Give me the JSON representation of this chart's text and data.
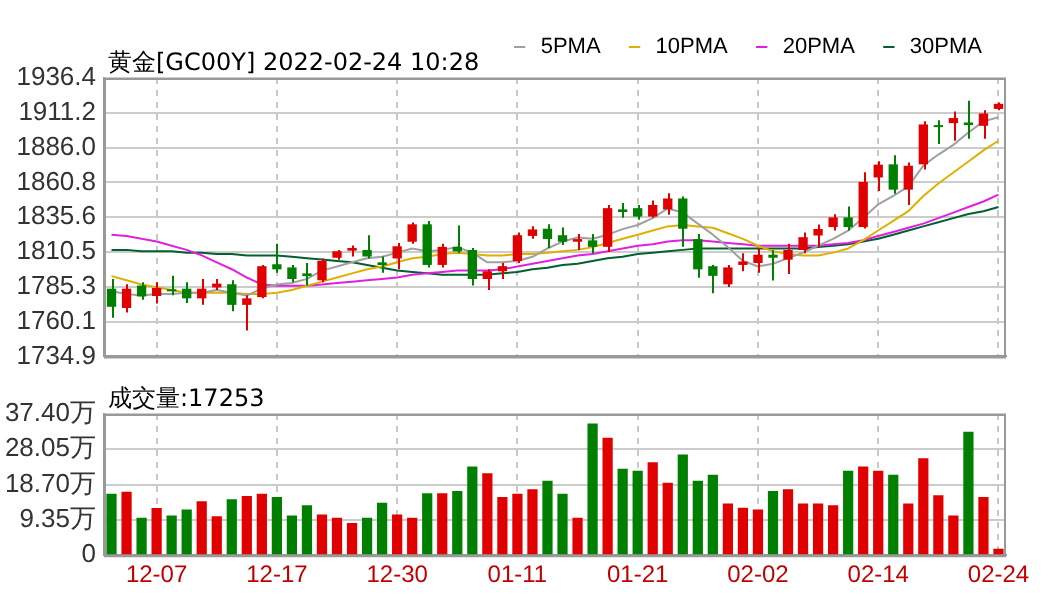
{
  "chart_data": [
    {
      "type": "candlestick",
      "title": "黄金[GC00Y] 2022-02-24 10:28",
      "categories": [
        null,
        null,
        null,
        null,
        null,
        null,
        null,
        null,
        null,
        null,
        null,
        null,
        null,
        null,
        null,
        null,
        null,
        null,
        null,
        null,
        null,
        null,
        null,
        null,
        null,
        null,
        null,
        null,
        null,
        null,
        null,
        null,
        null,
        null,
        null,
        null,
        null,
        null,
        null,
        null,
        null,
        null,
        null,
        null,
        null,
        null,
        null,
        null,
        null,
        null,
        null,
        null,
        null,
        null,
        null,
        null,
        null,
        null,
        null,
        null
      ],
      "ohlc": [
        [
          1783.9,
          1790.9,
          1762.9,
          1770.8
        ],
        [
          1769.9,
          1787.1,
          1766.6,
          1783.9
        ],
        [
          1786.2,
          1788.5,
          1775.9,
          1778.3
        ],
        [
          1778.6,
          1788.5,
          1773.2,
          1784.4
        ],
        [
          1783.5,
          1793.2,
          1779.2,
          1782.0
        ],
        [
          1783.9,
          1788.5,
          1773.6,
          1776.9
        ],
        [
          1776.9,
          1790.9,
          1772.2,
          1783.9
        ],
        [
          1784.8,
          1790.9,
          1783.0,
          1787.6
        ],
        [
          1787.1,
          1790.0,
          1767.6,
          1772.2
        ],
        [
          1772.2,
          1779.2,
          1753.6,
          1776.9
        ],
        [
          1777.8,
          1801.1,
          1776.9,
          1800.2
        ],
        [
          1801.6,
          1816.5,
          1795.5,
          1797.9
        ],
        [
          1799.3,
          1801.1,
          1788.5,
          1790.9
        ],
        [
          1795.0,
          1802.5,
          1786.2,
          1793.0
        ],
        [
          1790.0,
          1805.8,
          1788.5,
          1804.0
        ],
        [
          1806.3,
          1811.9,
          1804.9,
          1811.0
        ],
        [
          1811.4,
          1815.1,
          1807.2,
          1813.4
        ],
        [
          1811.9,
          1822.5,
          1805.8,
          1807.2
        ],
        [
          1803.0,
          1807.2,
          1795.5,
          1801.0
        ],
        [
          1805.8,
          1816.9,
          1797.9,
          1814.6
        ],
        [
          1817.9,
          1831.9,
          1816.5,
          1830.5
        ],
        [
          1830.5,
          1832.9,
          1799.3,
          1801.1
        ],
        [
          1801.1,
          1816.5,
          1799.3,
          1814.2
        ],
        [
          1814.2,
          1829.6,
          1809.5,
          1810.9
        ],
        [
          1811.9,
          1813.3,
          1786.2,
          1790.9
        ],
        [
          1790.9,
          1797.9,
          1783.0,
          1796.5
        ],
        [
          1796.5,
          1802.5,
          1790.9,
          1800.2
        ],
        [
          1803.9,
          1824.5,
          1802.5,
          1822.6
        ],
        [
          1822.1,
          1829.1,
          1820.0,
          1826.8
        ],
        [
          1827.3,
          1830.5,
          1813.3,
          1819.8
        ],
        [
          1822.6,
          1828.2,
          1815.6,
          1817.9
        ],
        [
          1817.9,
          1823.5,
          1812.0,
          1819.8
        ],
        [
          1818.9,
          1823.5,
          1809.5,
          1814.2
        ],
        [
          1814.2,
          1844.5,
          1810.5,
          1842.2
        ],
        [
          1841.3,
          1845.9,
          1835.2,
          1839.4
        ],
        [
          1842.2,
          1844.5,
          1833.8,
          1836.1
        ],
        [
          1836.1,
          1847.8,
          1835.2,
          1844.5
        ],
        [
          1841.3,
          1852.9,
          1837.5,
          1849.2
        ],
        [
          1849.2,
          1850.6,
          1814.2,
          1827.3
        ],
        [
          1819.8,
          1823.5,
          1791.8,
          1797.9
        ],
        [
          1800.2,
          1801.1,
          1780.6,
          1793.2
        ],
        [
          1787.1,
          1801.1,
          1785.2,
          1799.3
        ],
        [
          1801.1,
          1809.5,
          1796.5,
          1803.6
        ],
        [
          1802.5,
          1813.1,
          1795.5,
          1808.5
        ],
        [
          1808.5,
          1811.7,
          1789.9,
          1806.3
        ],
        [
          1804.9,
          1816.4,
          1794.6,
          1811.9
        ],
        [
          1811.9,
          1824.5,
          1809.5,
          1821.2
        ],
        [
          1822.4,
          1830.4,
          1814.2,
          1827.1
        ],
        [
          1828.5,
          1837.8,
          1826.1,
          1835.5
        ],
        [
          1835.5,
          1843.4,
          1826.1,
          1828.5
        ],
        [
          1828.5,
          1868.2,
          1827.5,
          1861.2
        ],
        [
          1864.4,
          1876.1,
          1854.7,
          1873.7
        ],
        [
          1873.9,
          1880.4,
          1852.6,
          1855.6
        ],
        [
          1855.6,
          1875.3,
          1844.4,
          1872.9
        ],
        [
          1873.9,
          1905.1,
          1870.2,
          1902.8
        ],
        [
          1902.3,
          1905.9,
          1888.6,
          1901.4
        ],
        [
          1903.7,
          1912.1,
          1891.0,
          1907.4
        ],
        [
          1904.2,
          1920.0,
          1892.4,
          1902.3
        ],
        [
          1901.8,
          1913.0,
          1892.4,
          1910.7
        ],
        [
          1914.0,
          1918.6,
          1913.0,
          1917.7
        ]
      ],
      "colors": [
        "#007f00",
        "#e00000",
        "#007f00",
        "#e00000",
        "#007f00",
        "#007f00",
        "#e00000",
        "#e00000",
        "#007f00",
        "#e00000",
        "#e00000",
        "#007f00",
        "#007f00",
        "#007f00",
        "#e00000",
        "#e00000",
        "#e00000",
        "#007f00",
        "#007f00",
        "#e00000",
        "#e00000",
        "#007f00",
        "#e00000",
        "#007f00",
        "#007f00",
        "#e00000",
        "#e00000",
        "#e00000",
        "#e00000",
        "#007f00",
        "#007f00",
        "#e00000",
        "#007f00",
        "#e00000",
        "#007f00",
        "#007f00",
        "#e00000",
        "#e00000",
        "#007f00",
        "#007f00",
        "#007f00",
        "#e00000",
        "#e00000",
        "#e00000",
        "#007f00",
        "#e00000",
        "#e00000",
        "#e00000",
        "#e00000",
        "#007f00",
        "#e00000",
        "#e00000",
        "#007f00",
        "#e00000",
        "#e00000",
        "#007f00",
        "#e00000",
        "#007f00",
        "#e00000",
        "#e00000"
      ],
      "series": [
        {
          "name": "5PMA",
          "type": "line",
          "color": "#a0a0a0",
          "values": [
            1782,
            1780,
            1779,
            1780,
            1780,
            1781,
            1781,
            1783,
            1781,
            1779,
            1784,
            1787,
            1788,
            1791,
            1797,
            1800,
            1803,
            1806,
            1807,
            1810,
            1813,
            1811,
            1812,
            1814,
            1810,
            1803,
            1803,
            1804,
            1807,
            1813,
            1818,
            1821,
            1820,
            1823,
            1827,
            1830,
            1835,
            1842,
            1839,
            1831,
            1823,
            1814,
            1804,
            1800,
            1802,
            1806,
            1810,
            1815,
            1820,
            1826,
            1835,
            1845,
            1851,
            1858,
            1873,
            1881,
            1888,
            1897,
            1905,
            1908
          ]
        },
        {
          "name": "10PMA",
          "type": "line",
          "color": "#e0b000",
          "values": [
            1793,
            1790,
            1787,
            1785,
            1783,
            1781,
            1781,
            1781,
            1781,
            1780,
            1780,
            1781,
            1783,
            1786,
            1789,
            1792,
            1795,
            1798,
            1800,
            1803,
            1806,
            1807,
            1809,
            1810,
            1809,
            1808,
            1808,
            1809,
            1809,
            1810,
            1811,
            1812,
            1814,
            1817,
            1820,
            1823,
            1826,
            1829,
            1830,
            1829,
            1828,
            1824,
            1820,
            1815,
            1811,
            1809,
            1808,
            1808,
            1810,
            1813,
            1819,
            1826,
            1833,
            1840,
            1851,
            1860,
            1868,
            1876,
            1884,
            1891
          ]
        },
        {
          "name": "20PMA",
          "type": "line",
          "color": "#e020e0",
          "values": [
            1823,
            1822,
            1820,
            1818,
            1815,
            1812,
            1808,
            1803,
            1798,
            1792,
            1787,
            1786,
            1786,
            1786,
            1787,
            1788,
            1789,
            1790,
            1791,
            1792,
            1794,
            1795,
            1796,
            1797,
            1797,
            1797,
            1798,
            1800,
            1802,
            1804,
            1806,
            1808,
            1809,
            1811,
            1813,
            1815,
            1816,
            1818,
            1819,
            1819,
            1818,
            1817,
            1816,
            1815,
            1815,
            1815,
            1815,
            1815,
            1816,
            1817,
            1819,
            1822,
            1825,
            1828,
            1831,
            1835,
            1839,
            1843,
            1847,
            1852
          ]
        },
        {
          "name": "30PMA",
          "type": "line",
          "color": "#006030",
          "values": [
            1812,
            1812,
            1811,
            1811,
            1811,
            1810,
            1810,
            1809,
            1809,
            1808,
            1808,
            1808,
            1807,
            1806,
            1805,
            1804,
            1803,
            1801,
            1799,
            1797,
            1796,
            1795,
            1794,
            1794,
            1794,
            1794,
            1795,
            1796,
            1798,
            1799,
            1801,
            1802,
            1804,
            1806,
            1807,
            1809,
            1810,
            1811,
            1812,
            1813,
            1813,
            1813,
            1813,
            1813,
            1813,
            1813,
            1813,
            1814,
            1815,
            1816,
            1818,
            1820,
            1823,
            1826,
            1829,
            1832,
            1835,
            1838,
            1840,
            1843
          ]
        }
      ],
      "ylim": [
        1734.9,
        1936.4
      ],
      "yticks": [
        1734.9,
        1760.1,
        1785.3,
        1810.5,
        1835.6,
        1860.8,
        {
          "value": 1886,
          "label": "1886.0"
        },
        1911.2,
        1936.4
      ],
      "grid": true,
      "legend": "top right",
      "tick_labels": "y"
    },
    {
      "type": "bar",
      "title": "成交量:17253",
      "categories": [
        null,
        null,
        null,
        "12-07",
        null,
        null,
        null,
        null,
        null,
        null,
        null,
        "12-17",
        null,
        null,
        null,
        null,
        null,
        null,
        null,
        "12-30",
        null,
        null,
        null,
        null,
        null,
        null,
        null,
        "01-11",
        null,
        null,
        null,
        null,
        null,
        null,
        null,
        "01-21",
        null,
        null,
        null,
        null,
        null,
        null,
        null,
        "02-02",
        null,
        null,
        null,
        null,
        null,
        null,
        null,
        "02-14",
        null,
        null,
        null,
        null,
        null,
        null,
        null,
        "02-24"
      ],
      "values": [
        16.3,
        16.8,
        9.9,
        12.5,
        10.5,
        12.1,
        14.3,
        10.3,
        14.8,
        15.7,
        16.3,
        15.4,
        10.5,
        13.2,
        10.8,
        9.9,
        8.5,
        9.9,
        13.9,
        10.8,
        9.9,
        16.4,
        16.4,
        17.0,
        23.5,
        21.7,
        15.4,
        16.3,
        17.5,
        19.7,
        16.3,
        9.9,
        34.9,
        31.1,
        22.9,
        22.4,
        24.6,
        19.2,
        26.7,
        19.7,
        21.3,
        13.7,
        12.6,
        12.1,
        17.0,
        17.5,
        13.7,
        13.7,
        13.2,
        22.4,
        23.5,
        22.4,
        21.3,
        13.7,
        25.7,
        15.9,
        10.5,
        32.7,
        15.4,
        1.7
      ],
      "colors": [
        "#007f00",
        "#e00000",
        "#007f00",
        "#e00000",
        "#007f00",
        "#007f00",
        "#e00000",
        "#e00000",
        "#007f00",
        "#e00000",
        "#e00000",
        "#007f00",
        "#007f00",
        "#007f00",
        "#e00000",
        "#e00000",
        "#e00000",
        "#007f00",
        "#007f00",
        "#e00000",
        "#e00000",
        "#007f00",
        "#e00000",
        "#007f00",
        "#007f00",
        "#e00000",
        "#e00000",
        "#e00000",
        "#e00000",
        "#007f00",
        "#007f00",
        "#e00000",
        "#007f00",
        "#e00000",
        "#007f00",
        "#007f00",
        "#e00000",
        "#e00000",
        "#007f00",
        "#007f00",
        "#007f00",
        "#e00000",
        "#e00000",
        "#e00000",
        "#007f00",
        "#e00000",
        "#e00000",
        "#e00000",
        "#e00000",
        "#007f00",
        "#e00000",
        "#e00000",
        "#007f00",
        "#e00000",
        "#e00000",
        "#e00000",
        "#e00000",
        "#007f00",
        "#e00000",
        "#e00000"
      ],
      "ylim": [
        0,
        37.4
      ],
      "yticks": [
        0,
        {
          "value": 9.35,
          "label": "9.35万"
        },
        {
          "value": 18.7,
          "label": "18.70万"
        },
        {
          "value": 28.05,
          "label": "28.05万"
        },
        {
          "value": 37.4,
          "label": "37.40万"
        }
      ],
      "grid": true
    }
  ]
}
